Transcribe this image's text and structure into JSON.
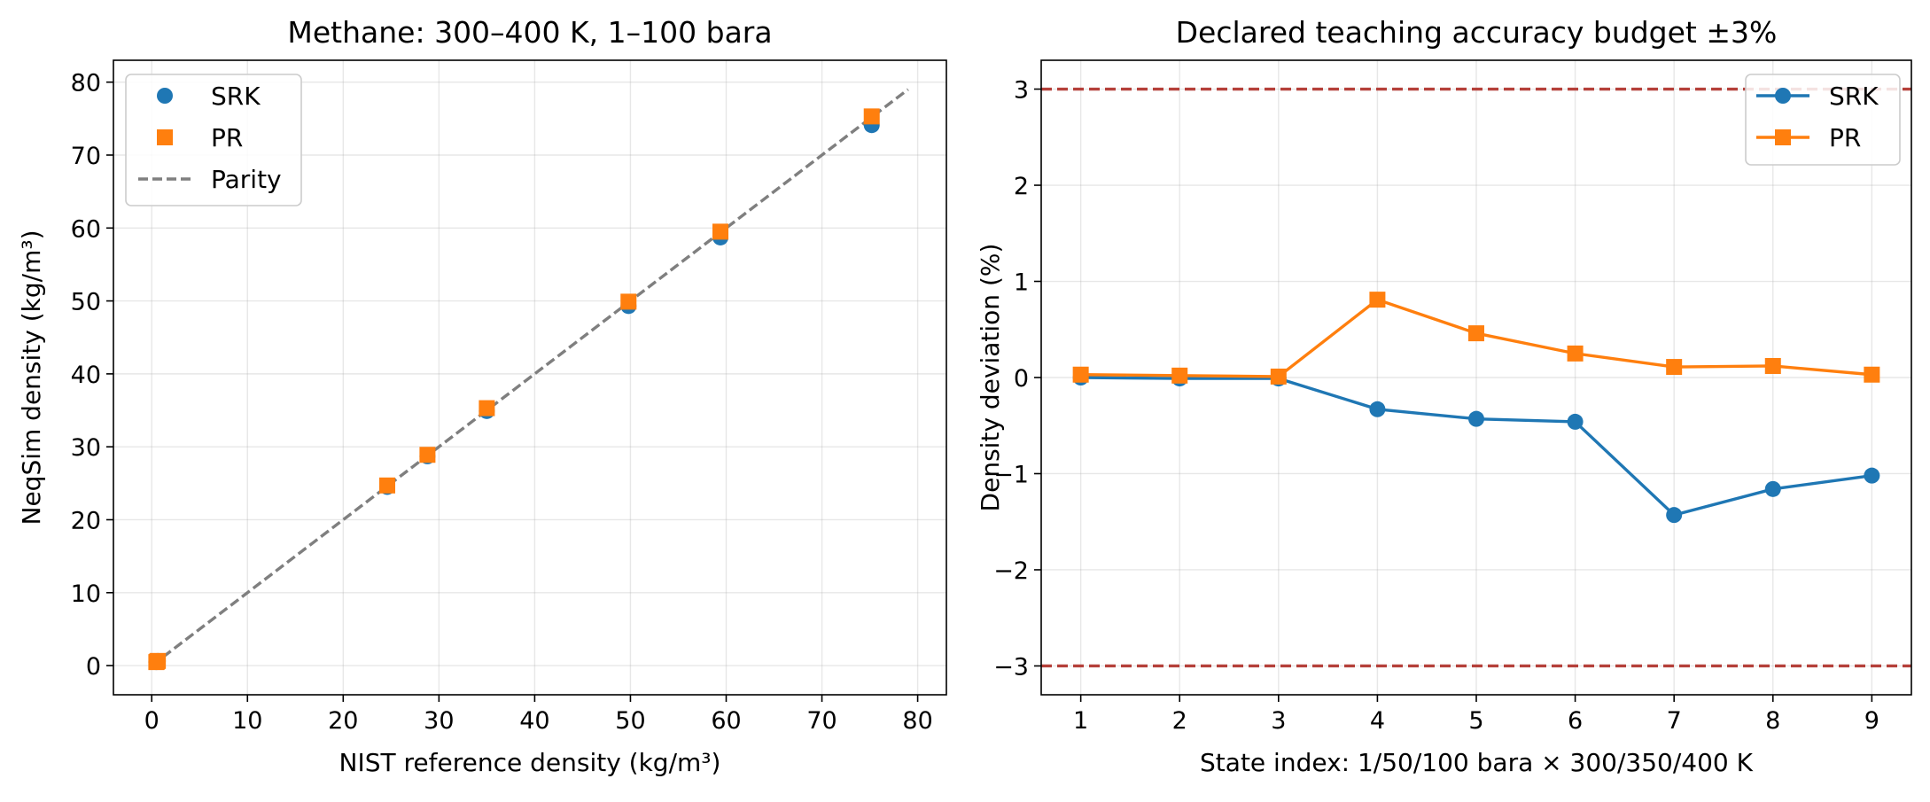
{
  "colors": {
    "srk": "#1f77b4",
    "pr": "#ff7f0e",
    "parity": "#7f7f7f",
    "budget": "#b5403a"
  },
  "chart_data": [
    {
      "type": "scatter",
      "title": "Methane: 300–400 K, 1–100 bara",
      "xlabel": "NIST reference density (kg/m³)",
      "ylabel": "NeqSim density (kg/m³)",
      "xlim": [
        -4,
        83
      ],
      "ylim": [
        -4,
        83
      ],
      "xticks": [
        0,
        10,
        20,
        30,
        40,
        50,
        60,
        70,
        80
      ],
      "yticks": [
        0,
        10,
        20,
        30,
        40,
        50,
        60,
        70,
        80
      ],
      "grid": true,
      "legend": "top-left",
      "series": [
        {
          "name": "SRK",
          "marker": "circle",
          "x": [
            0.64,
            0.55,
            0.48,
            35.0,
            28.8,
            24.6,
            75.2,
            59.4,
            49.8
          ],
          "y": [
            0.64,
            0.55,
            0.48,
            34.9,
            28.7,
            24.5,
            74.1,
            58.7,
            49.3
          ]
        },
        {
          "name": "PR",
          "marker": "square",
          "x": [
            0.64,
            0.55,
            0.48,
            35.0,
            28.8,
            24.6,
            75.2,
            59.4,
            49.8
          ],
          "y": [
            0.64,
            0.55,
            0.48,
            35.3,
            28.9,
            24.7,
            75.3,
            59.5,
            49.9
          ]
        },
        {
          "name": "Parity",
          "style": "dashed",
          "x": [
            0,
            79
          ],
          "y": [
            0,
            79
          ]
        }
      ]
    },
    {
      "type": "line",
      "title": "Declared teaching accuracy budget ±3%",
      "xlabel": "State index: 1/50/100 bara × 300/350/400 K",
      "ylabel": "Density deviation (%)",
      "xlim": [
        0.6,
        9.4
      ],
      "ylim": [
        -3.3,
        3.3
      ],
      "xticks": [
        1,
        2,
        3,
        4,
        5,
        6,
        7,
        8,
        9
      ],
      "yticks": [
        -3,
        -2,
        -1,
        0,
        1,
        2,
        3
      ],
      "ytick_labels": [
        "−3",
        "−2",
        "−1",
        "0",
        "1",
        "2",
        "3"
      ],
      "grid": true,
      "legend": "top-right",
      "hlines": [
        3,
        -3
      ],
      "series": [
        {
          "name": "SRK",
          "marker": "circle",
          "x": [
            1,
            2,
            3,
            4,
            5,
            6,
            7,
            8,
            9
          ],
          "y": [
            0.0,
            -0.01,
            -0.01,
            -0.33,
            -0.43,
            -0.46,
            -1.43,
            -1.16,
            -1.02
          ]
        },
        {
          "name": "PR",
          "marker": "square",
          "x": [
            1,
            2,
            3,
            4,
            5,
            6,
            7,
            8,
            9
          ],
          "y": [
            0.03,
            0.02,
            0.01,
            0.81,
            0.46,
            0.25,
            0.11,
            0.12,
            0.03
          ]
        }
      ]
    }
  ]
}
